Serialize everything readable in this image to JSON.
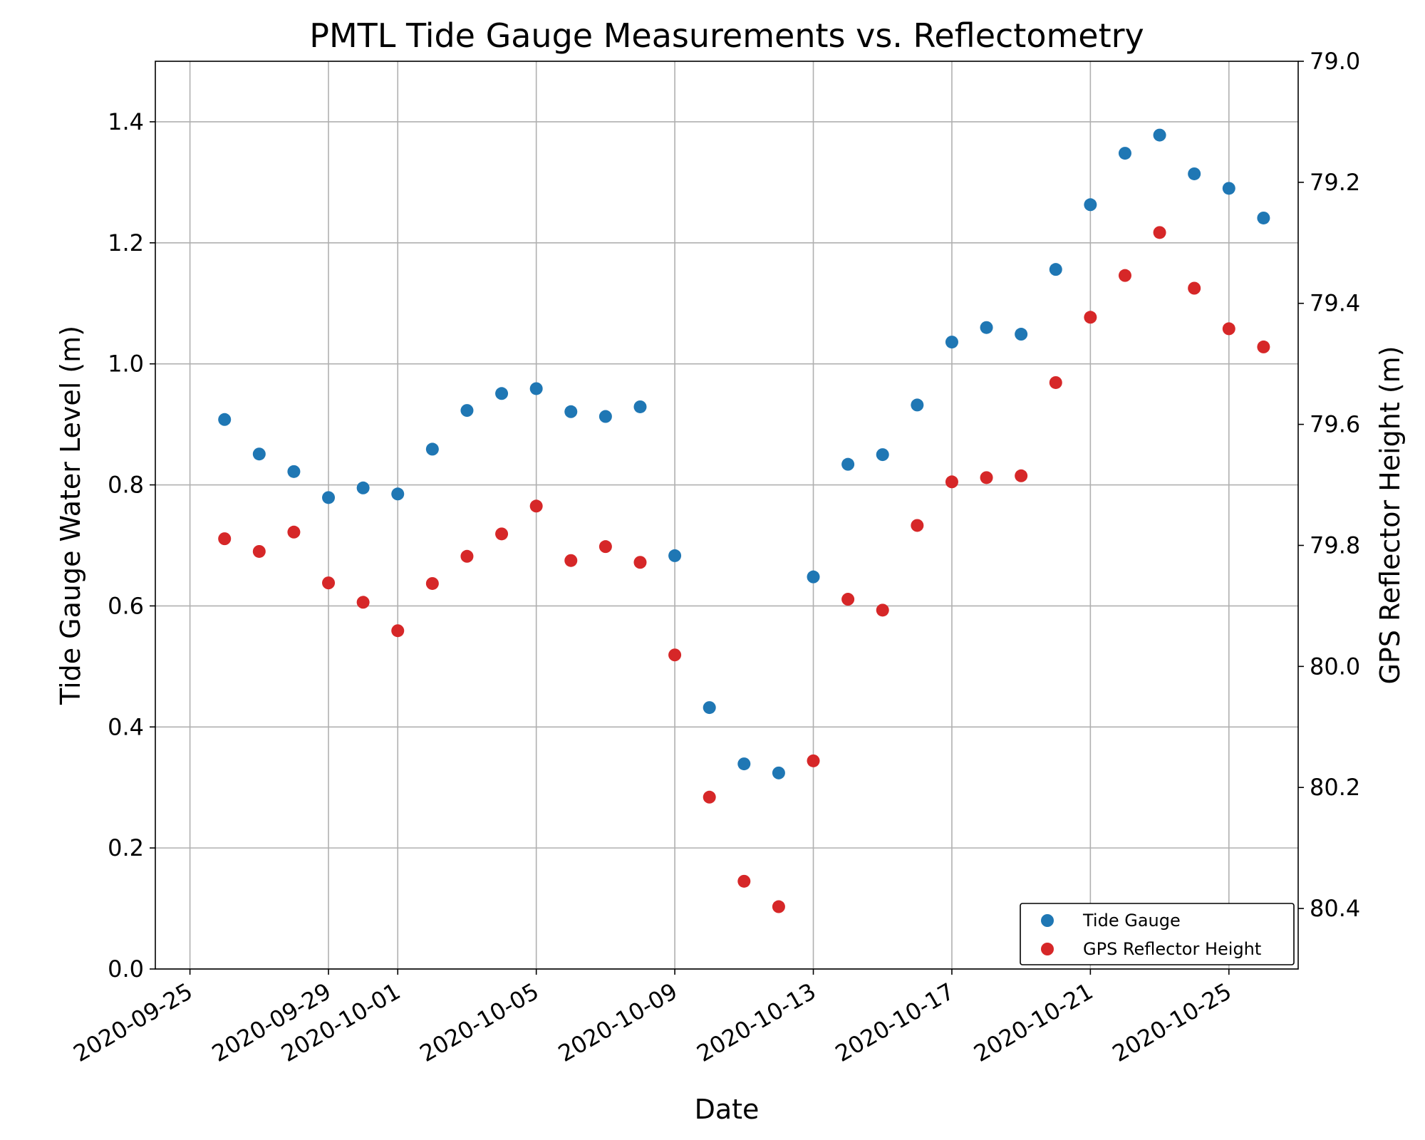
{
  "chart_data": {
    "type": "scatter",
    "title": "PMTL Tide Gauge Measurements vs. Reflectometry",
    "xlabel": "Date",
    "ylabel": "Tide Gauge Water Level (m)",
    "y2label": "GPS Reflector Height (m)",
    "xlim": [
      "2020-09-24",
      "2020-10-27"
    ],
    "ylim": [
      0.0,
      1.5
    ],
    "y2lim": [
      80.5,
      79.0
    ],
    "y2_inverted": true,
    "grid": true,
    "legend_position": "lower right",
    "xticks": [
      "2020-09-25",
      "2020-09-29",
      "2020-10-01",
      "2020-10-05",
      "2020-10-09",
      "2020-10-13",
      "2020-10-17",
      "2020-10-21",
      "2020-10-25"
    ],
    "yticks": [
      "0.0",
      "0.2",
      "0.4",
      "0.6",
      "0.8",
      "1.0",
      "1.2",
      "1.4"
    ],
    "y2ticks": [
      "79.0",
      "79.2",
      "79.4",
      "79.6",
      "79.8",
      "80.0",
      "80.2",
      "80.4"
    ],
    "series": [
      {
        "name": "Tide Gauge",
        "axis": "left",
        "color": "#1f77b4",
        "x": [
          "2020-09-26",
          "2020-09-27",
          "2020-09-28",
          "2020-09-29",
          "2020-09-30",
          "2020-10-01",
          "2020-10-02",
          "2020-10-03",
          "2020-10-04",
          "2020-10-05",
          "2020-10-06",
          "2020-10-07",
          "2020-10-08",
          "2020-10-09",
          "2020-10-10",
          "2020-10-11",
          "2020-10-12",
          "2020-10-13",
          "2020-10-14",
          "2020-10-15",
          "2020-10-16",
          "2020-10-17",
          "2020-10-18",
          "2020-10-19",
          "2020-10-20",
          "2020-10-21",
          "2020-10-22",
          "2020-10-23",
          "2020-10-24",
          "2020-10-25",
          "2020-10-26"
        ],
        "y": [
          0.908,
          0.851,
          0.822,
          0.779,
          0.795,
          0.785,
          0.859,
          0.923,
          0.951,
          0.959,
          0.921,
          0.913,
          0.929,
          0.683,
          0.432,
          0.339,
          0.324,
          0.648,
          0.834,
          0.85,
          0.932,
          1.036,
          1.06,
          1.049,
          1.156,
          1.263,
          1.348,
          1.378,
          1.314,
          1.29,
          1.241
        ]
      },
      {
        "name": "GPS Reflector Height",
        "axis": "right",
        "color": "#d62728",
        "x": [
          "2020-09-26",
          "2020-09-27",
          "2020-09-28",
          "2020-09-29",
          "2020-09-30",
          "2020-10-01",
          "2020-10-02",
          "2020-10-03",
          "2020-10-04",
          "2020-10-05",
          "2020-10-06",
          "2020-10-07",
          "2020-10-08",
          "2020-10-09",
          "2020-10-10",
          "2020-10-11",
          "2020-10-12",
          "2020-10-13",
          "2020-10-14",
          "2020-10-15",
          "2020-10-16",
          "2020-10-17",
          "2020-10-18",
          "2020-10-19",
          "2020-10-20",
          "2020-10-21",
          "2020-10-22",
          "2020-10-23",
          "2020-10-24",
          "2020-10-25",
          "2020-10-26"
        ],
        "y": [
          79.789,
          79.81,
          79.778,
          79.862,
          79.894,
          79.941,
          79.863,
          79.818,
          79.781,
          79.735,
          79.825,
          79.802,
          79.828,
          79.981,
          80.216,
          80.355,
          80.397,
          80.156,
          79.889,
          79.907,
          79.767,
          79.695,
          79.688,
          79.685,
          79.531,
          79.423,
          79.354,
          79.283,
          79.375,
          79.442,
          79.472
        ]
      }
    ]
  }
}
